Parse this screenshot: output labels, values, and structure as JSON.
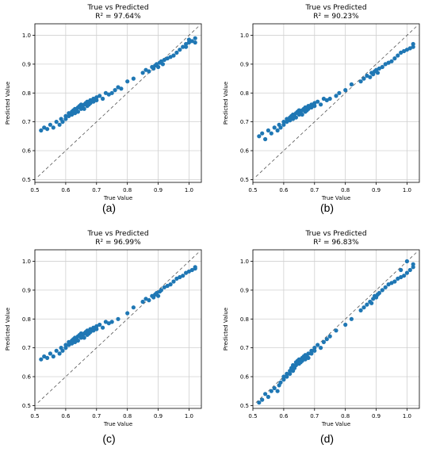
{
  "chart_data": [
    {
      "type": "scatter",
      "title": "True vs Predicted",
      "subtitle": "R² = 97.64%",
      "xlabel": "True Value",
      "ylabel": "Predicted Value",
      "caption": "(a)",
      "xlim": [
        0.5,
        1.04
      ],
      "ylim": [
        0.49,
        1.04
      ],
      "xticks": [
        "0.5",
        "0.6",
        "0.7",
        "0.8",
        "0.9",
        "1.0"
      ],
      "yticks": [
        "0.5",
        "0.6",
        "0.7",
        "0.8",
        "0.9",
        "1.0"
      ],
      "grid": true,
      "reference_line": "y = x (dashed)",
      "point_color": "#1f77b4",
      "x": [
        0.52,
        0.53,
        0.54,
        0.55,
        0.56,
        0.57,
        0.58,
        0.585,
        0.59,
        0.6,
        0.6,
        0.61,
        0.61,
        0.62,
        0.62,
        0.625,
        0.63,
        0.63,
        0.635,
        0.64,
        0.64,
        0.645,
        0.65,
        0.65,
        0.655,
        0.66,
        0.66,
        0.665,
        0.67,
        0.67,
        0.675,
        0.68,
        0.68,
        0.69,
        0.69,
        0.7,
        0.7,
        0.71,
        0.72,
        0.73,
        0.74,
        0.75,
        0.76,
        0.77,
        0.78,
        0.8,
        0.82,
        0.85,
        0.86,
        0.87,
        0.88,
        0.885,
        0.89,
        0.895,
        0.9,
        0.905,
        0.91,
        0.915,
        0.92,
        0.93,
        0.94,
        0.95,
        0.96,
        0.97,
        0.98,
        0.99,
        1.0,
        1.01,
        1.02,
        1.02,
        1.0,
        0.99
      ],
      "y": [
        0.67,
        0.68,
        0.675,
        0.69,
        0.68,
        0.7,
        0.69,
        0.71,
        0.7,
        0.72,
        0.71,
        0.73,
        0.72,
        0.735,
        0.725,
        0.74,
        0.73,
        0.745,
        0.74,
        0.75,
        0.735,
        0.755,
        0.745,
        0.76,
        0.75,
        0.76,
        0.745,
        0.765,
        0.755,
        0.77,
        0.76,
        0.765,
        0.775,
        0.77,
        0.78,
        0.775,
        0.785,
        0.79,
        0.78,
        0.8,
        0.795,
        0.8,
        0.81,
        0.82,
        0.815,
        0.84,
        0.85,
        0.87,
        0.88,
        0.875,
        0.89,
        0.885,
        0.895,
        0.9,
        0.89,
        0.905,
        0.91,
        0.9,
        0.915,
        0.92,
        0.925,
        0.93,
        0.94,
        0.95,
        0.96,
        0.97,
        0.975,
        0.98,
        0.975,
        0.99,
        0.985,
        0.96
      ]
    },
    {
      "type": "scatter",
      "title": "True vs Predicted",
      "subtitle": "R² = 90.23%",
      "xlabel": "True Value",
      "ylabel": "Predicted Value",
      "caption": "(b)",
      "xlim": [
        0.5,
        1.04
      ],
      "ylim": [
        0.49,
        1.04
      ],
      "xticks": [
        "0.5",
        "0.6",
        "0.7",
        "0.8",
        "0.9",
        "1.0"
      ],
      "yticks": [
        "0.5",
        "0.6",
        "0.7",
        "0.8",
        "0.9",
        "1.0"
      ],
      "grid": true,
      "reference_line": "y = x (dashed)",
      "point_color": "#1f77b4",
      "x": [
        0.52,
        0.53,
        0.54,
        0.55,
        0.56,
        0.57,
        0.58,
        0.585,
        0.59,
        0.6,
        0.6,
        0.61,
        0.61,
        0.62,
        0.62,
        0.625,
        0.63,
        0.63,
        0.635,
        0.64,
        0.64,
        0.645,
        0.65,
        0.65,
        0.655,
        0.66,
        0.66,
        0.665,
        0.67,
        0.67,
        0.675,
        0.68,
        0.68,
        0.69,
        0.69,
        0.7,
        0.7,
        0.71,
        0.72,
        0.73,
        0.74,
        0.75,
        0.77,
        0.78,
        0.8,
        0.82,
        0.85,
        0.86,
        0.87,
        0.88,
        0.885,
        0.89,
        0.895,
        0.9,
        0.905,
        0.91,
        0.92,
        0.93,
        0.94,
        0.95,
        0.96,
        0.97,
        0.98,
        0.99,
        1.0,
        1.01,
        1.02,
        1.02
      ],
      "y": [
        0.65,
        0.66,
        0.64,
        0.67,
        0.66,
        0.68,
        0.67,
        0.69,
        0.68,
        0.7,
        0.69,
        0.71,
        0.7,
        0.715,
        0.705,
        0.72,
        0.71,
        0.725,
        0.72,
        0.73,
        0.715,
        0.735,
        0.725,
        0.74,
        0.73,
        0.74,
        0.725,
        0.745,
        0.735,
        0.75,
        0.74,
        0.745,
        0.755,
        0.75,
        0.76,
        0.755,
        0.765,
        0.77,
        0.76,
        0.78,
        0.775,
        0.78,
        0.79,
        0.8,
        0.81,
        0.83,
        0.84,
        0.85,
        0.86,
        0.855,
        0.87,
        0.865,
        0.875,
        0.88,
        0.87,
        0.885,
        0.89,
        0.9,
        0.905,
        0.91,
        0.92,
        0.93,
        0.94,
        0.945,
        0.95,
        0.955,
        0.96,
        0.97
      ]
    },
    {
      "type": "scatter",
      "title": "True vs Predicted",
      "subtitle": "R² = 96.99%",
      "xlabel": "True Value",
      "ylabel": "Predicted Value",
      "caption": "(c)",
      "xlim": [
        0.5,
        1.04
      ],
      "ylim": [
        0.49,
        1.04
      ],
      "xticks": [
        "0.5",
        "0.6",
        "0.7",
        "0.8",
        "0.9",
        "1.0"
      ],
      "yticks": [
        "0.5",
        "0.6",
        "0.7",
        "0.8",
        "0.9",
        "1.0"
      ],
      "grid": true,
      "reference_line": "y = x (dashed)",
      "point_color": "#1f77b4",
      "x": [
        0.52,
        0.53,
        0.54,
        0.55,
        0.56,
        0.57,
        0.58,
        0.585,
        0.59,
        0.6,
        0.6,
        0.61,
        0.61,
        0.62,
        0.62,
        0.625,
        0.63,
        0.63,
        0.635,
        0.64,
        0.64,
        0.645,
        0.65,
        0.65,
        0.655,
        0.66,
        0.66,
        0.665,
        0.67,
        0.67,
        0.675,
        0.68,
        0.68,
        0.69,
        0.69,
        0.7,
        0.7,
        0.71,
        0.72,
        0.73,
        0.74,
        0.75,
        0.77,
        0.8,
        0.82,
        0.85,
        0.86,
        0.87,
        0.88,
        0.885,
        0.89,
        0.895,
        0.9,
        0.905,
        0.91,
        0.92,
        0.93,
        0.94,
        0.95,
        0.96,
        0.97,
        0.98,
        0.99,
        1.0,
        1.01,
        1.02,
        1.02
      ],
      "y": [
        0.66,
        0.67,
        0.665,
        0.68,
        0.67,
        0.69,
        0.68,
        0.7,
        0.69,
        0.71,
        0.7,
        0.72,
        0.71,
        0.725,
        0.715,
        0.73,
        0.72,
        0.735,
        0.73,
        0.74,
        0.725,
        0.745,
        0.735,
        0.75,
        0.74,
        0.75,
        0.735,
        0.755,
        0.745,
        0.76,
        0.75,
        0.755,
        0.765,
        0.76,
        0.77,
        0.765,
        0.775,
        0.78,
        0.77,
        0.79,
        0.785,
        0.79,
        0.8,
        0.82,
        0.84,
        0.86,
        0.87,
        0.865,
        0.88,
        0.875,
        0.885,
        0.89,
        0.88,
        0.895,
        0.9,
        0.91,
        0.915,
        0.92,
        0.93,
        0.94,
        0.945,
        0.95,
        0.96,
        0.965,
        0.97,
        0.975,
        0.98
      ]
    },
    {
      "type": "scatter",
      "title": "True vs Predicted",
      "subtitle": "R² = 96.83%",
      "xlabel": "True Value",
      "ylabel": "Predicted Value",
      "caption": "(d)",
      "xlim": [
        0.5,
        1.04
      ],
      "ylim": [
        0.49,
        1.04
      ],
      "xticks": [
        "0.5",
        "0.6",
        "0.7",
        "0.8",
        "0.9",
        "1.0"
      ],
      "yticks": [
        "0.5",
        "0.6",
        "0.7",
        "0.8",
        "0.9",
        "1.0"
      ],
      "grid": true,
      "reference_line": "y = x (dashed)",
      "point_color": "#1f77b4",
      "x": [
        0.52,
        0.53,
        0.54,
        0.55,
        0.56,
        0.57,
        0.58,
        0.585,
        0.59,
        0.6,
        0.6,
        0.61,
        0.61,
        0.62,
        0.62,
        0.625,
        0.63,
        0.63,
        0.635,
        0.64,
        0.64,
        0.645,
        0.65,
        0.65,
        0.655,
        0.66,
        0.66,
        0.665,
        0.67,
        0.67,
        0.675,
        0.68,
        0.68,
        0.69,
        0.69,
        0.7,
        0.7,
        0.71,
        0.72,
        0.73,
        0.74,
        0.75,
        0.77,
        0.8,
        0.82,
        0.85,
        0.86,
        0.87,
        0.88,
        0.885,
        0.89,
        0.895,
        0.9,
        0.905,
        0.91,
        0.92,
        0.93,
        0.94,
        0.95,
        0.96,
        0.97,
        0.98,
        0.99,
        1.0,
        1.01,
        1.02,
        1.02,
        1.0,
        0.98
      ],
      "y": [
        0.51,
        0.52,
        0.54,
        0.53,
        0.55,
        0.56,
        0.55,
        0.57,
        0.58,
        0.6,
        0.59,
        0.61,
        0.6,
        0.62,
        0.61,
        0.63,
        0.62,
        0.64,
        0.63,
        0.65,
        0.64,
        0.655,
        0.645,
        0.66,
        0.65,
        0.665,
        0.655,
        0.67,
        0.66,
        0.675,
        0.67,
        0.68,
        0.665,
        0.69,
        0.68,
        0.7,
        0.69,
        0.71,
        0.7,
        0.72,
        0.73,
        0.74,
        0.76,
        0.78,
        0.8,
        0.83,
        0.84,
        0.85,
        0.86,
        0.855,
        0.87,
        0.88,
        0.875,
        0.885,
        0.89,
        0.9,
        0.91,
        0.92,
        0.925,
        0.93,
        0.94,
        0.945,
        0.95,
        0.96,
        0.97,
        0.98,
        0.99,
        1.0,
        0.97
      ]
    }
  ]
}
